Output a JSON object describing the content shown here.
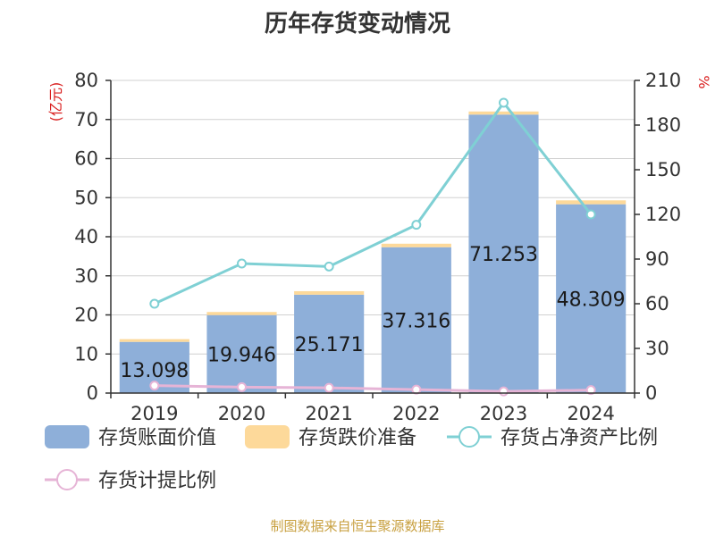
{
  "title": "历年存货变动情况",
  "source": "制图数据来自恒生聚源数据库",
  "chart_data": {
    "type": "bar",
    "categories": [
      "2019",
      "2020",
      "2021",
      "2022",
      "2023",
      "2024"
    ],
    "y_left": {
      "label": "(亿元)",
      "ylim": [
        0,
        80
      ],
      "ticks": [
        0,
        10,
        20,
        30,
        40,
        50,
        60,
        70,
        80
      ]
    },
    "y_right": {
      "label": "%",
      "ylim": [
        0,
        210
      ],
      "ticks": [
        0,
        30,
        60,
        90,
        120,
        150,
        180,
        210
      ]
    },
    "grid": true,
    "legend_position": "bottom",
    "series": [
      {
        "name": "存货账面价值",
        "kind": "bar",
        "axis": "left",
        "color": "#8eafd9",
        "values": [
          13.098,
          19.946,
          25.171,
          37.316,
          71.253,
          48.309
        ],
        "labels": [
          "13.098",
          "19.946",
          "25.171",
          "37.316",
          "71.253",
          "48.309"
        ]
      },
      {
        "name": "存货跌价准备",
        "kind": "bar",
        "axis": "left",
        "stack": true,
        "color": "#fdd99a",
        "values": [
          0.7,
          0.8,
          0.9,
          0.9,
          0.8,
          1.0
        ]
      },
      {
        "name": "存货占净资产比例",
        "kind": "line",
        "axis": "right",
        "color": "#7fd0d4",
        "values": [
          60,
          87,
          85,
          113,
          195,
          120
        ]
      },
      {
        "name": "存货计提比例",
        "kind": "line",
        "axis": "right",
        "color": "#e6b4d6",
        "values": [
          5.0,
          4.0,
          3.5,
          2.3,
          1.1,
          2.0
        ]
      }
    ]
  }
}
